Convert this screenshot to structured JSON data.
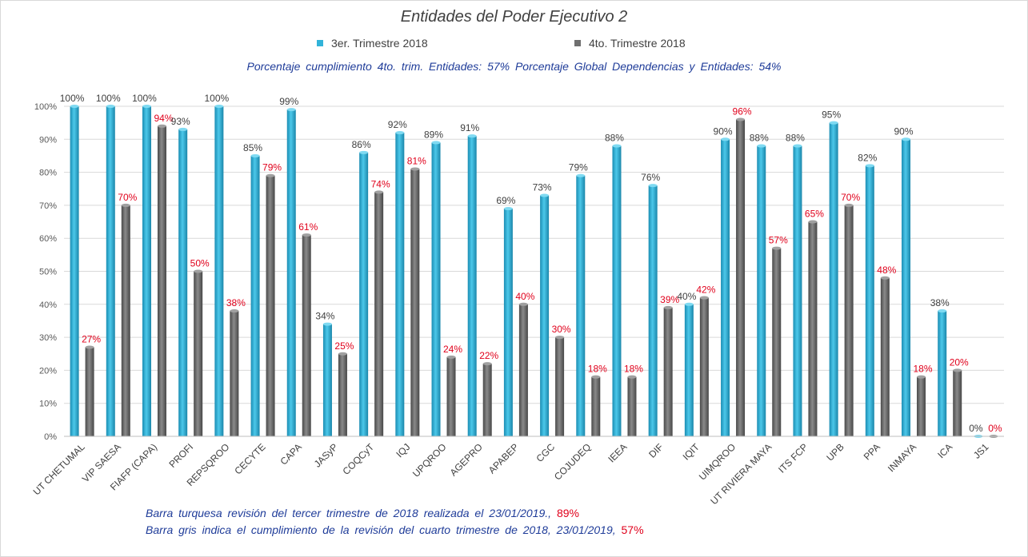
{
  "chart_data": {
    "type": "bar",
    "title": "Entidades del Poder Ejecutivo 2",
    "categories": [
      "UT CHETUMAL",
      "VIP SAESA",
      "FIAFP (CAPA)",
      "PROFI",
      "REPSQROO",
      "CECYTE",
      "CAPA",
      "JASyP",
      "COQCyT",
      "IQJ",
      "UPQROO",
      "AGEPRO",
      "APABEP",
      "CGC",
      "COJUDEQ",
      "IEEA",
      "DIF",
      "IQIT",
      "UIMQROO",
      "UT RIVIERA MAYA",
      "ITS FCP",
      "UPB",
      "PPA",
      "INMAYA",
      "ICA",
      "JS1"
    ],
    "series": [
      {
        "name": "3er. Trimestre 2018",
        "color": "#31b3d9",
        "label_color": "#404040",
        "values": [
          100,
          100,
          100,
          93,
          100,
          85,
          99,
          34,
          86,
          92,
          89,
          91,
          69,
          73,
          79,
          88,
          76,
          40,
          90,
          88,
          88,
          95,
          82,
          90,
          38,
          0
        ]
      },
      {
        "name": "4to. Trimestre 2018",
        "color": "#6f6f6f",
        "label_color": "#e0001b",
        "values": [
          27,
          70,
          94,
          50,
          38,
          79,
          61,
          25,
          74,
          81,
          24,
          22,
          40,
          30,
          18,
          18,
          39,
          42,
          96,
          57,
          65,
          70,
          48,
          18,
          20,
          0
        ]
      }
    ],
    "ylim": [
      0,
      100
    ],
    "yticks": [
      "0%",
      "10%",
      "20%",
      "30%",
      "40%",
      "50%",
      "60%",
      "70%",
      "80%",
      "90%",
      "100%"
    ],
    "value_suffix": "%",
    "grid": true,
    "legend_position": "top"
  },
  "subtitle": "Porcentaje cumplimiento 4to. trim. Entidades: 57%    Porcentaje Global Dependencias y Entidades: 54%",
  "notes": {
    "line1_text": "Barra turquesa revisión del tercer trimestre de 2018 realizada el 23/01/2019.,",
    "line1_pct": "89%",
    "line2_text": "Barra gris indica el cumplimiento de la revisión del cuarto trimestre de 2018, 23/01/2019,",
    "line2_pct": "57%"
  }
}
